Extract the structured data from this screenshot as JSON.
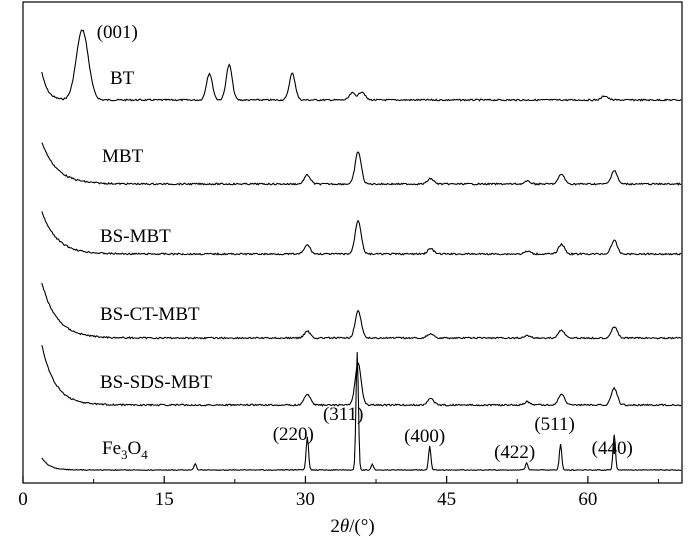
{
  "chart_data": {
    "type": "line",
    "title": "",
    "xlabel": "2θ/(°)",
    "ylabel": "",
    "xlim": [
      0,
      70
    ],
    "xticks": [
      0,
      15,
      30,
      45,
      60
    ],
    "grid": false,
    "y_axis_shown": false,
    "series": [
      {
        "name": "BT",
        "peaks": [
          [
            6.3,
            1.0
          ],
          [
            19.8,
            0.38
          ],
          [
            21.9,
            0.5
          ],
          [
            28.6,
            0.38
          ],
          [
            35.0,
            0.1
          ],
          [
            36.0,
            0.12
          ],
          [
            61.8,
            0.06
          ]
        ],
        "peak_labels": [
          {
            "x": 6.3,
            "text": "(001)"
          }
        ]
      },
      {
        "name": "MBT",
        "peaks": [
          [
            30.2,
            0.2
          ],
          [
            35.6,
            0.72
          ],
          [
            43.3,
            0.12
          ],
          [
            53.6,
            0.06
          ],
          [
            57.2,
            0.22
          ],
          [
            62.8,
            0.3
          ]
        ]
      },
      {
        "name": "BS-MBT",
        "peaks": [
          [
            30.2,
            0.2
          ],
          [
            35.6,
            0.75
          ],
          [
            43.3,
            0.12
          ],
          [
            53.6,
            0.06
          ],
          [
            57.2,
            0.22
          ],
          [
            62.8,
            0.3
          ]
        ]
      },
      {
        "name": "BS-CT-MBT",
        "peaks": [
          [
            30.2,
            0.15
          ],
          [
            35.6,
            0.6
          ],
          [
            43.3,
            0.1
          ],
          [
            53.6,
            0.05
          ],
          [
            57.2,
            0.18
          ],
          [
            62.8,
            0.25
          ]
        ]
      },
      {
        "name": "BS-SDS-MBT",
        "peaks": [
          [
            30.2,
            0.2
          ],
          [
            35.6,
            0.75
          ],
          [
            43.3,
            0.12
          ],
          [
            53.6,
            0.06
          ],
          [
            57.2,
            0.2
          ],
          [
            62.8,
            0.3
          ]
        ]
      },
      {
        "name": "Fe3O4",
        "peaks": [
          [
            18.3,
            0.05
          ],
          [
            30.2,
            0.28
          ],
          [
            35.5,
            1.0
          ],
          [
            37.1,
            0.05
          ],
          [
            43.2,
            0.2
          ],
          [
            53.5,
            0.06
          ],
          [
            57.1,
            0.22
          ],
          [
            62.8,
            0.3
          ]
        ],
        "peak_labels": [
          {
            "x": 30.2,
            "text": "(220)"
          },
          {
            "x": 35.5,
            "text": "(311)"
          },
          {
            "x": 43.2,
            "text": "(400)"
          },
          {
            "x": 53.5,
            "text": "(422)"
          },
          {
            "x": 57.1,
            "text": "(511)"
          },
          {
            "x": 62.8,
            "text": "(440)"
          }
        ]
      }
    ]
  }
}
